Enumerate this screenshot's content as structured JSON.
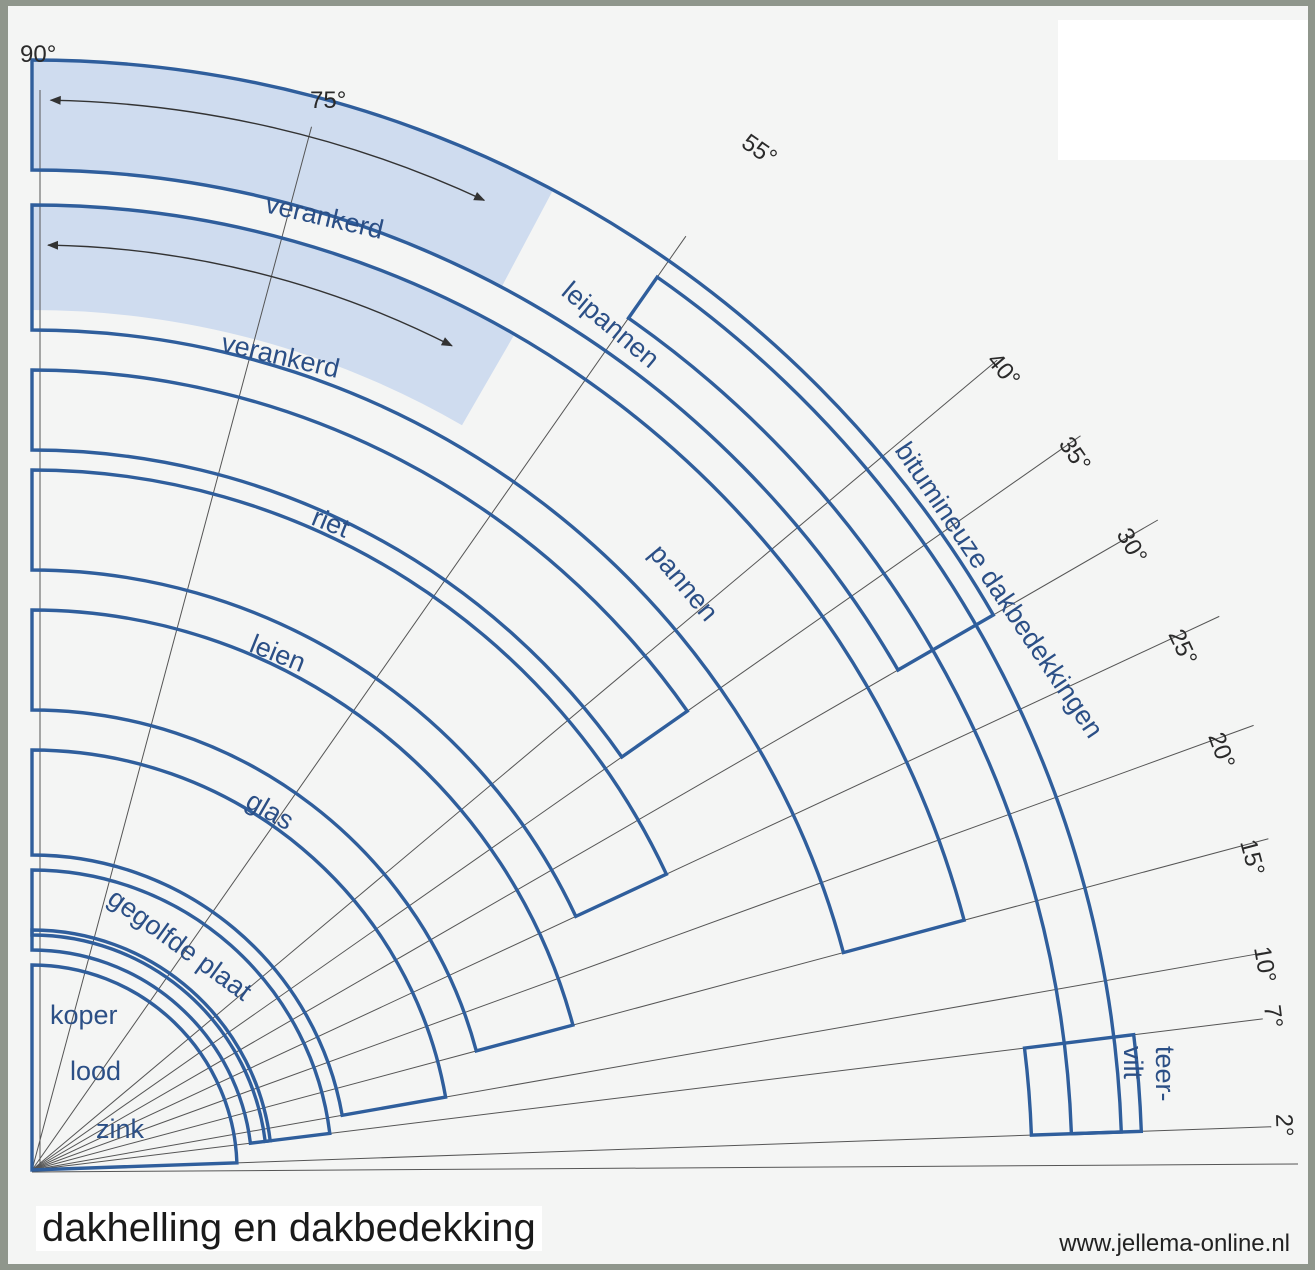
{
  "title": "dakhelling en dakbedekking",
  "source": "www.jellema-online.nl",
  "colors": {
    "stroke": "#2f5e9c",
    "shade": "#cfdcef",
    "text": "#2b4f86",
    "line": "#555555"
  },
  "angle_labels": [
    "90°",
    "75°",
    "55°",
    "40°",
    "35°",
    "30°",
    "25°",
    "20°",
    "15°",
    "10°",
    "7°",
    "2°"
  ],
  "materials": [
    {
      "label": "zink"
    },
    {
      "label": "lood"
    },
    {
      "label": "koper"
    },
    {
      "label": "gegolfde plaat"
    },
    {
      "label": "glas"
    },
    {
      "label": "leien"
    },
    {
      "label": "riet"
    },
    {
      "label": "verankerd"
    },
    {
      "label": "pannen"
    },
    {
      "label": "verankerd"
    },
    {
      "label": "leipannen"
    },
    {
      "label": "bitumineuze dakbedekkingen"
    },
    {
      "label": "teer-vilt"
    }
  ]
}
